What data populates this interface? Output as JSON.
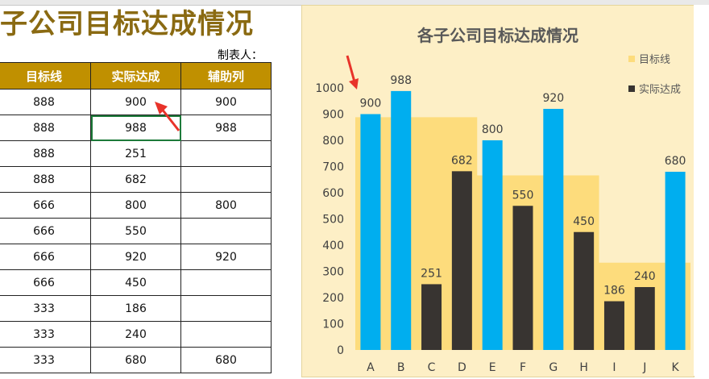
{
  "sheet": {
    "title": "子公司目标达成情况",
    "author_label": "制表人：",
    "headers": [
      "目标线",
      "实际达成",
      "辅助列"
    ],
    "rows": [
      [
        "888",
        "900",
        "900"
      ],
      [
        "888",
        "988",
        "988"
      ],
      [
        "888",
        "251",
        ""
      ],
      [
        "888",
        "682",
        ""
      ],
      [
        "666",
        "800",
        "800"
      ],
      [
        "666",
        "550",
        ""
      ],
      [
        "666",
        "920",
        "920"
      ],
      [
        "666",
        "450",
        ""
      ],
      [
        "333",
        "186",
        ""
      ],
      [
        "333",
        "240",
        ""
      ],
      [
        "333",
        "680",
        "680"
      ]
    ]
  },
  "chart_data": {
    "type": "bar",
    "title": "各子公司目标达成情况",
    "categories": [
      "A",
      "B",
      "C",
      "D",
      "E",
      "F",
      "G",
      "H",
      "I",
      "J",
      "K"
    ],
    "series": [
      {
        "name": "目标线",
        "kind": "area",
        "color": "#fddc7c",
        "values": [
          888,
          888,
          888,
          888,
          666,
          666,
          666,
          666,
          333,
          333,
          333
        ]
      },
      {
        "name": "实际达成",
        "kind": "bar",
        "color": "#383431",
        "values": [
          900,
          988,
          251,
          682,
          800,
          550,
          920,
          450,
          186,
          240,
          680
        ]
      }
    ],
    "highlight_color": "#00aeef",
    "highlight_indices": [
      0,
      1,
      4,
      6,
      10
    ],
    "ylim": [
      0,
      1000
    ],
    "yticks": [
      0,
      100,
      200,
      300,
      400,
      500,
      600,
      700,
      800,
      900,
      1000
    ],
    "legend_position": "right",
    "grid": false
  }
}
